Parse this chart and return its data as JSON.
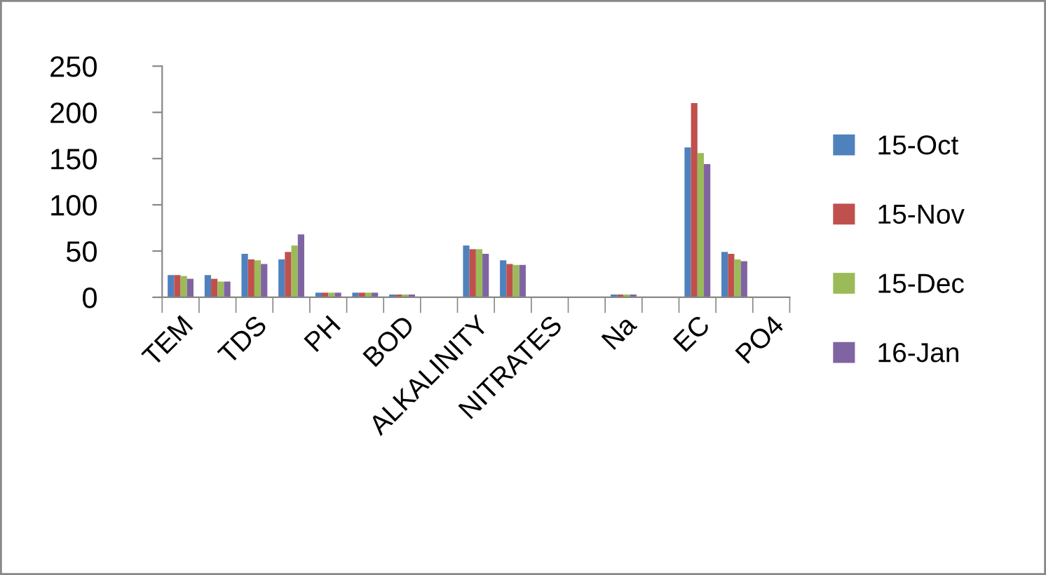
{
  "chart_data": {
    "type": "bar",
    "categories": [
      "TEM",
      null,
      "TDS",
      null,
      "PH",
      null,
      "BOD",
      null,
      "ALKALINITY",
      null,
      "NITRATES",
      null,
      "Na",
      null,
      "EC",
      null,
      "PO4"
    ],
    "series": [
      {
        "name": "15-Oct",
        "color": "#4f81bd",
        "values": [
          24,
          24,
          47,
          41,
          5,
          5,
          3,
          null,
          56,
          40,
          null,
          null,
          3,
          null,
          162,
          49,
          null
        ]
      },
      {
        "name": "15-Nov",
        "color": "#c0504d",
        "values": [
          24,
          20,
          41,
          49,
          5,
          5,
          3,
          null,
          52,
          36,
          null,
          null,
          3,
          null,
          210,
          47,
          null
        ]
      },
      {
        "name": "15-Dec",
        "color": "#9bbb59",
        "values": [
          23,
          17,
          40,
          56,
          5,
          5,
          3,
          null,
          52,
          35,
          null,
          null,
          3,
          null,
          156,
          41,
          null
        ]
      },
      {
        "name": "16-Jan",
        "color": "#8064a2",
        "values": [
          20,
          17,
          36,
          68,
          5,
          5,
          3,
          null,
          47,
          35,
          null,
          null,
          3,
          null,
          144,
          39,
          null
        ]
      }
    ],
    "ylim": [
      0,
      250
    ],
    "yticks": [
      0,
      50,
      100,
      150,
      200,
      250
    ],
    "grid": false,
    "legend": "right"
  }
}
